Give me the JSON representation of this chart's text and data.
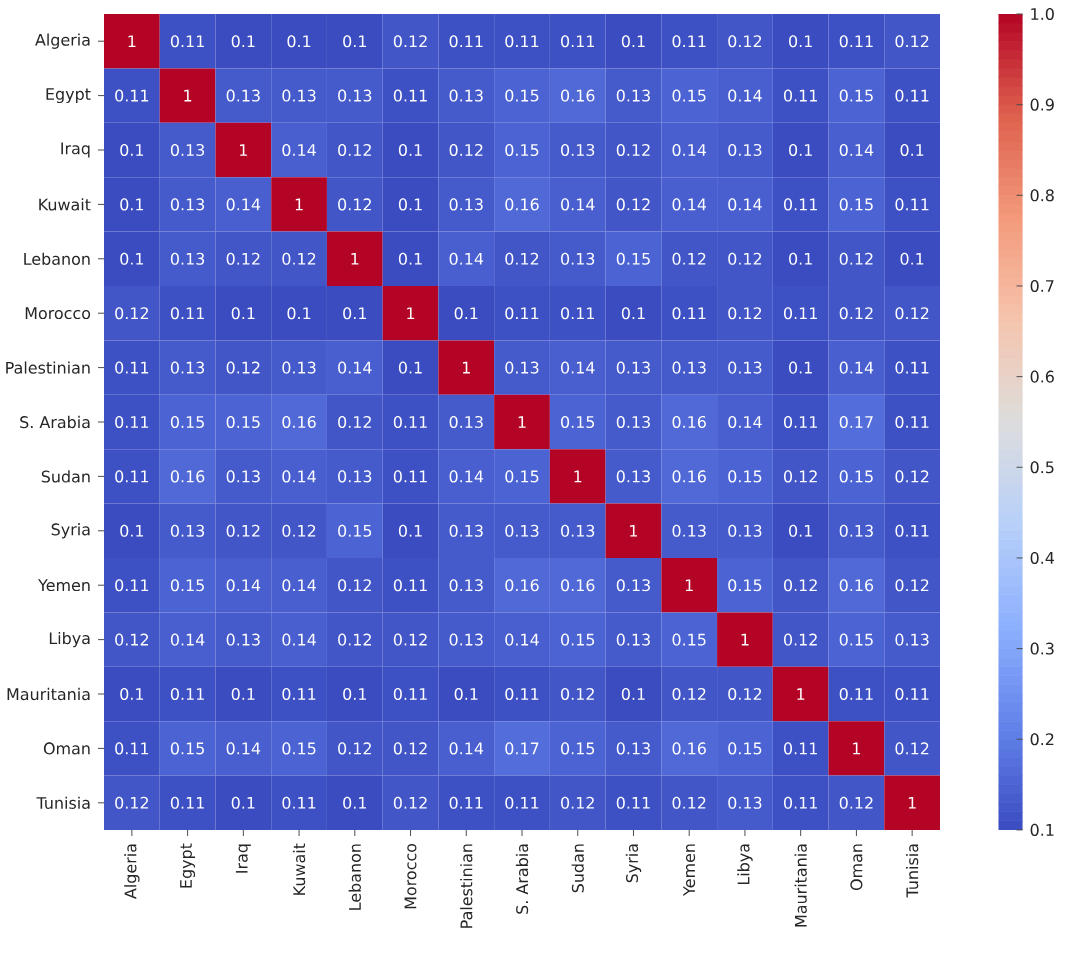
{
  "chart_data": {
    "type": "heatmap",
    "categories": [
      "Algeria",
      "Egypt",
      "Iraq",
      "Kuwait",
      "Lebanon",
      "Morocco",
      "Palestinian",
      "S. Arabia",
      "Sudan",
      "Syria",
      "Yemen",
      "Libya",
      "Mauritania",
      "Oman",
      "Tunisia"
    ],
    "y_categories": [
      "Algeria",
      "Egypt",
      "Iraq",
      "Kuwait",
      "Lebanon",
      "Morocco",
      "Palestinian",
      "S. Arabia",
      "Sudan",
      "Syria",
      "Yemen",
      "Libya",
      "Mauritania",
      "Oman",
      "Tunisia"
    ],
    "cells": [
      [
        1,
        0.11,
        0.1,
        0.1,
        0.1,
        0.12,
        0.11,
        0.11,
        0.11,
        0.1,
        0.11,
        0.12,
        0.1,
        0.11,
        0.12
      ],
      [
        0.11,
        1,
        0.13,
        0.13,
        0.13,
        0.11,
        0.13,
        0.15,
        0.16,
        0.13,
        0.15,
        0.14,
        0.11,
        0.15,
        0.11
      ],
      [
        0.1,
        0.13,
        1,
        0.14,
        0.12,
        0.1,
        0.12,
        0.15,
        0.13,
        0.12,
        0.14,
        0.13,
        0.1,
        0.14,
        0.1
      ],
      [
        0.1,
        0.13,
        0.14,
        1,
        0.12,
        0.1,
        0.13,
        0.16,
        0.14,
        0.12,
        0.14,
        0.14,
        0.11,
        0.15,
        0.11
      ],
      [
        0.1,
        0.13,
        0.12,
        0.12,
        1,
        0.1,
        0.14,
        0.12,
        0.13,
        0.15,
        0.12,
        0.12,
        0.1,
        0.12,
        0.1
      ],
      [
        0.12,
        0.11,
        0.1,
        0.1,
        0.1,
        1,
        0.1,
        0.11,
        0.11,
        0.1,
        0.11,
        0.12,
        0.11,
        0.12,
        0.12
      ],
      [
        0.11,
        0.13,
        0.12,
        0.13,
        0.14,
        0.1,
        1,
        0.13,
        0.14,
        0.13,
        0.13,
        0.13,
        0.1,
        0.14,
        0.11
      ],
      [
        0.11,
        0.15,
        0.15,
        0.16,
        0.12,
        0.11,
        0.13,
        1,
        0.15,
        0.13,
        0.16,
        0.14,
        0.11,
        0.17,
        0.11
      ],
      [
        0.11,
        0.16,
        0.13,
        0.14,
        0.13,
        0.11,
        0.14,
        0.15,
        1,
        0.13,
        0.16,
        0.15,
        0.12,
        0.15,
        0.12
      ],
      [
        0.1,
        0.13,
        0.12,
        0.12,
        0.15,
        0.1,
        0.13,
        0.13,
        0.13,
        1,
        0.13,
        0.13,
        0.1,
        0.13,
        0.11
      ],
      [
        0.11,
        0.15,
        0.14,
        0.14,
        0.12,
        0.11,
        0.13,
        0.16,
        0.16,
        0.13,
        1,
        0.15,
        0.12,
        0.16,
        0.12
      ],
      [
        0.12,
        0.14,
        0.13,
        0.14,
        0.12,
        0.12,
        0.13,
        0.14,
        0.15,
        0.13,
        0.15,
        1,
        0.12,
        0.15,
        0.13
      ],
      [
        0.1,
        0.11,
        0.1,
        0.11,
        0.1,
        0.11,
        0.1,
        0.11,
        0.12,
        0.1,
        0.12,
        0.12,
        1,
        0.11,
        0.11
      ],
      [
        0.11,
        0.15,
        0.14,
        0.15,
        0.12,
        0.12,
        0.14,
        0.17,
        0.15,
        0.13,
        0.16,
        0.15,
        0.11,
        1,
        0.12
      ],
      [
        0.12,
        0.11,
        0.1,
        0.11,
        0.1,
        0.12,
        0.11,
        0.11,
        0.12,
        0.11,
        0.12,
        0.13,
        0.11,
        0.12,
        1
      ]
    ],
    "data_labels": true,
    "clim": [
      0.1,
      1
    ],
    "cticks": [
      0.1,
      0.2,
      0.3,
      0.4,
      0.5,
      0.6,
      0.7,
      0.8,
      0.9,
      {
        "value": 1,
        "label": "1.0"
      }
    ]
  }
}
